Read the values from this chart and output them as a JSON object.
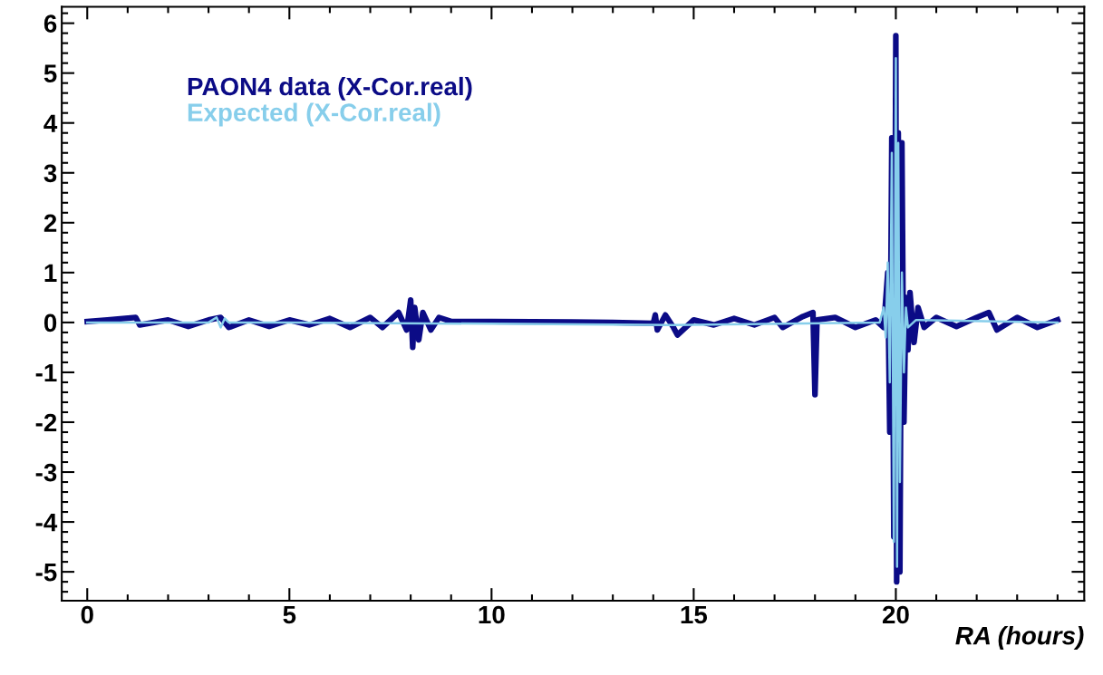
{
  "chart_data": {
    "type": "line",
    "xlabel": "RA (hours)",
    "xlim": [
      -0.63,
      24.66
    ],
    "ylim": [
      -5.58,
      6.33
    ],
    "xticks": [
      0,
      5,
      10,
      15,
      20
    ],
    "yticks": [
      -5,
      -4,
      -3,
      -2,
      -1,
      0,
      1,
      2,
      3,
      4,
      5,
      6
    ],
    "grid": false,
    "legend": "top left",
    "series": [
      {
        "name": "PAON4 data (X-Cor.real)",
        "color": "#0b0b86",
        "x": [
          0,
          0.5,
          1.2,
          1.3,
          2,
          2.5,
          3,
          3.3,
          3.5,
          4,
          4.5,
          5,
          5.5,
          6,
          6.5,
          7,
          7.3,
          7.7,
          7.9,
          8.0,
          8.05,
          8.1,
          8.2,
          8.3,
          8.5,
          8.7,
          9,
          10,
          12,
          13,
          14,
          14.05,
          14.1,
          14.3,
          14.5,
          14.6,
          14.8,
          15,
          15.5,
          16,
          16.5,
          17,
          17.2,
          17.7,
          17.95,
          18,
          18.05,
          18.5,
          19,
          19.5,
          19.7,
          19.8,
          19.85,
          19.9,
          19.95,
          20.0,
          20.02,
          20.06,
          20.1,
          20.15,
          20.2,
          20.25,
          20.3,
          20.35,
          20.45,
          20.55,
          20.7,
          21,
          21.5,
          22,
          22.3,
          22.5,
          23,
          23.5,
          24
        ],
        "values": [
          0.02,
          0.05,
          0.1,
          -0.05,
          0.05,
          -0.08,
          0.05,
          0.1,
          -0.1,
          0.05,
          -0.08,
          0.05,
          -0.05,
          0.08,
          -0.1,
          0.1,
          -0.1,
          0.2,
          -0.15,
          0.45,
          -0.5,
          0.3,
          -0.35,
          0.2,
          -0.15,
          0.1,
          0.02,
          0.02,
          0.01,
          0.0,
          -0.02,
          0.15,
          -0.15,
          0.15,
          -0.1,
          -0.25,
          -0.1,
          0.05,
          -0.05,
          0.08,
          -0.05,
          0.1,
          -0.1,
          0.12,
          0.2,
          -1.45,
          0.05,
          0.1,
          -0.1,
          0.05,
          -0.1,
          1.0,
          -2.2,
          3.7,
          -4.3,
          5.75,
          -5.2,
          3.8,
          -5.0,
          3.6,
          -2.0,
          0.5,
          -0.55,
          0.6,
          -0.4,
          0.3,
          -0.1,
          0.1,
          -0.08,
          0.1,
          0.2,
          -0.15,
          0.1,
          -0.1,
          0.05
        ]
      },
      {
        "name": "Expected (X-Cor.real)",
        "color": "#87ceeb",
        "x": [
          0,
          3,
          3.2,
          3.3,
          3.4,
          3.5,
          5,
          14.5,
          19.6,
          19.7,
          19.75,
          19.8,
          19.85,
          19.9,
          19.95,
          20.0,
          20.03,
          20.06,
          20.1,
          20.15,
          20.2,
          20.25,
          20.3,
          20.5,
          24
        ],
        "values": [
          0,
          0,
          0.1,
          -0.1,
          0.08,
          0,
          0,
          -0.05,
          0,
          0.3,
          -0.3,
          1.2,
          -1.2,
          3.4,
          -4.4,
          5.3,
          -4.9,
          3.6,
          -3.2,
          1.0,
          -1.0,
          0.3,
          -0.1,
          0.05,
          0
        ]
      }
    ]
  }
}
